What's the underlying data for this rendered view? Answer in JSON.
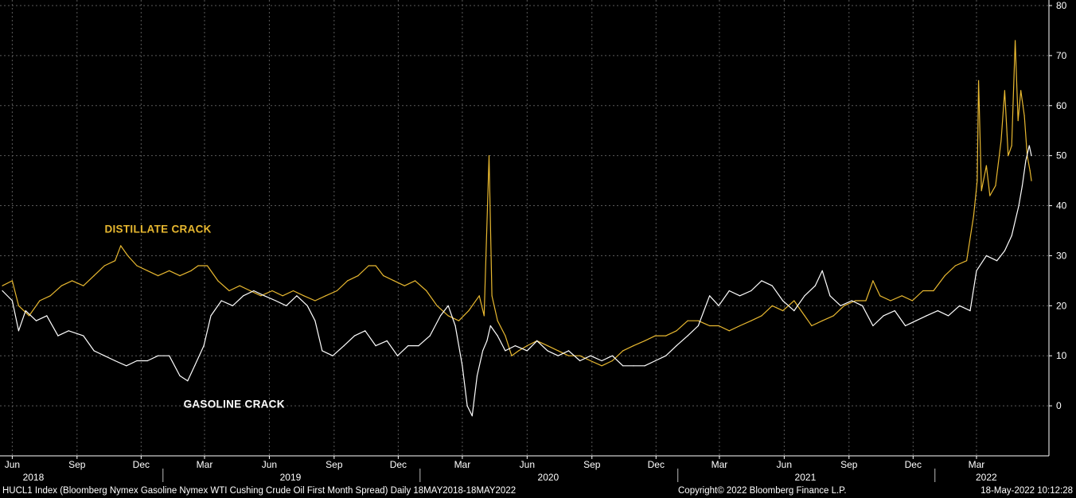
{
  "chart_data": {
    "type": "line",
    "x_range": [
      "2018-05-18",
      "2022-05-18"
    ],
    "ylim": [
      -10,
      80
    ],
    "yticks": [
      0,
      10,
      20,
      30,
      40,
      50,
      60,
      70,
      80
    ],
    "grid": true,
    "month_ticks": [
      {
        "label": "Jun",
        "date": "2018-06-01"
      },
      {
        "label": "Sep",
        "date": "2018-09-01"
      },
      {
        "label": "Dec",
        "date": "2018-12-01"
      },
      {
        "label": "Mar",
        "date": "2019-03-01"
      },
      {
        "label": "Jun",
        "date": "2019-06-01"
      },
      {
        "label": "Sep",
        "date": "2019-09-01"
      },
      {
        "label": "Dec",
        "date": "2019-12-01"
      },
      {
        "label": "Mar",
        "date": "2020-03-01"
      },
      {
        "label": "Jun",
        "date": "2020-06-01"
      },
      {
        "label": "Sep",
        "date": "2020-09-01"
      },
      {
        "label": "Dec",
        "date": "2020-12-01"
      },
      {
        "label": "Mar",
        "date": "2021-03-01"
      },
      {
        "label": "Jun",
        "date": "2021-06-01"
      },
      {
        "label": "Sep",
        "date": "2021-09-01"
      },
      {
        "label": "Dec",
        "date": "2021-12-01"
      },
      {
        "label": "Mar",
        "date": "2022-03-01"
      }
    ],
    "year_labels": [
      {
        "label": "2018",
        "date": "2018-07-01"
      },
      {
        "label": "2019",
        "date": "2019-07-01"
      },
      {
        "label": "2020",
        "date": "2020-07-01"
      },
      {
        "label": "2021",
        "date": "2021-07-01"
      },
      {
        "label": "2022",
        "date": "2022-03-15"
      }
    ],
    "series": [
      {
        "name": "DISTILLATE CRACK",
        "color": "#e8b830",
        "points": [
          [
            "2018-05-18",
            24
          ],
          [
            "2018-06-01",
            25
          ],
          [
            "2018-06-10",
            20
          ],
          [
            "2018-06-25",
            18
          ],
          [
            "2018-07-10",
            21
          ],
          [
            "2018-07-25",
            22
          ],
          [
            "2018-08-10",
            24
          ],
          [
            "2018-08-25",
            25
          ],
          [
            "2018-09-10",
            24
          ],
          [
            "2018-09-25",
            26
          ],
          [
            "2018-10-10",
            28
          ],
          [
            "2018-10-25",
            29
          ],
          [
            "2018-11-02",
            32
          ],
          [
            "2018-11-12",
            30
          ],
          [
            "2018-11-25",
            28
          ],
          [
            "2018-12-10",
            27
          ],
          [
            "2018-12-25",
            26
          ],
          [
            "2019-01-10",
            27
          ],
          [
            "2019-01-25",
            26
          ],
          [
            "2019-02-10",
            27
          ],
          [
            "2019-02-20",
            28
          ],
          [
            "2019-03-05",
            28
          ],
          [
            "2019-03-20",
            25
          ],
          [
            "2019-04-05",
            23
          ],
          [
            "2019-04-20",
            24
          ],
          [
            "2019-05-05",
            23
          ],
          [
            "2019-05-20",
            22
          ],
          [
            "2019-06-05",
            23
          ],
          [
            "2019-06-20",
            22
          ],
          [
            "2019-07-05",
            23
          ],
          [
            "2019-07-20",
            22
          ],
          [
            "2019-08-05",
            21
          ],
          [
            "2019-08-20",
            22
          ],
          [
            "2019-09-05",
            23
          ],
          [
            "2019-09-20",
            25
          ],
          [
            "2019-10-05",
            26
          ],
          [
            "2019-10-20",
            28
          ],
          [
            "2019-10-30",
            28
          ],
          [
            "2019-11-10",
            26
          ],
          [
            "2019-11-25",
            25
          ],
          [
            "2019-12-10",
            24
          ],
          [
            "2019-12-25",
            25
          ],
          [
            "2020-01-10",
            23
          ],
          [
            "2020-01-25",
            20
          ],
          [
            "2020-02-10",
            18
          ],
          [
            "2020-02-25",
            17
          ],
          [
            "2020-03-10",
            19
          ],
          [
            "2020-03-25",
            22
          ],
          [
            "2020-04-01",
            18
          ],
          [
            "2020-04-08",
            50
          ],
          [
            "2020-04-12",
            22
          ],
          [
            "2020-04-20",
            17
          ],
          [
            "2020-05-01",
            14
          ],
          [
            "2020-05-10",
            10
          ],
          [
            "2020-05-20",
            11
          ],
          [
            "2020-06-01",
            12
          ],
          [
            "2020-06-15",
            13
          ],
          [
            "2020-06-30",
            12
          ],
          [
            "2020-07-15",
            11
          ],
          [
            "2020-07-30",
            10
          ],
          [
            "2020-08-15",
            10
          ],
          [
            "2020-08-30",
            9
          ],
          [
            "2020-09-15",
            8
          ],
          [
            "2020-09-30",
            9
          ],
          [
            "2020-10-15",
            11
          ],
          [
            "2020-10-30",
            12
          ],
          [
            "2020-11-15",
            13
          ],
          [
            "2020-11-30",
            14
          ],
          [
            "2020-12-15",
            14
          ],
          [
            "2020-12-30",
            15
          ],
          [
            "2021-01-15",
            17
          ],
          [
            "2021-01-30",
            17
          ],
          [
            "2021-02-15",
            16
          ],
          [
            "2021-02-28",
            16
          ],
          [
            "2021-03-15",
            15
          ],
          [
            "2021-03-30",
            16
          ],
          [
            "2021-04-15",
            17
          ],
          [
            "2021-04-30",
            18
          ],
          [
            "2021-05-15",
            20
          ],
          [
            "2021-05-30",
            19
          ],
          [
            "2021-06-15",
            21
          ],
          [
            "2021-06-30",
            18
          ],
          [
            "2021-07-10",
            16
          ],
          [
            "2021-07-25",
            17
          ],
          [
            "2021-08-10",
            18
          ],
          [
            "2021-08-25",
            20
          ],
          [
            "2021-09-10",
            21
          ],
          [
            "2021-09-25",
            21
          ],
          [
            "2021-10-05",
            25
          ],
          [
            "2021-10-15",
            22
          ],
          [
            "2021-10-30",
            21
          ],
          [
            "2021-11-15",
            22
          ],
          [
            "2021-11-30",
            21
          ],
          [
            "2021-12-15",
            23
          ],
          [
            "2021-12-30",
            23
          ],
          [
            "2022-01-15",
            26
          ],
          [
            "2022-01-30",
            28
          ],
          [
            "2022-02-15",
            29
          ],
          [
            "2022-02-25",
            38
          ],
          [
            "2022-03-02",
            45
          ],
          [
            "2022-03-04",
            65
          ],
          [
            "2022-03-08",
            43
          ],
          [
            "2022-03-15",
            48
          ],
          [
            "2022-03-20",
            42
          ],
          [
            "2022-03-28",
            44
          ],
          [
            "2022-04-05",
            53
          ],
          [
            "2022-04-10",
            63
          ],
          [
            "2022-04-15",
            50
          ],
          [
            "2022-04-20",
            52
          ],
          [
            "2022-04-25",
            73
          ],
          [
            "2022-04-29",
            57
          ],
          [
            "2022-05-03",
            63
          ],
          [
            "2022-05-08",
            58
          ],
          [
            "2022-05-12",
            50
          ],
          [
            "2022-05-16",
            47
          ],
          [
            "2022-05-18",
            45
          ]
        ]
      },
      {
        "name": "GASOLINE CRACK",
        "color": "#ffffff",
        "points": [
          [
            "2018-05-18",
            23
          ],
          [
            "2018-06-01",
            21
          ],
          [
            "2018-06-10",
            15
          ],
          [
            "2018-06-20",
            19
          ],
          [
            "2018-07-05",
            17
          ],
          [
            "2018-07-20",
            18
          ],
          [
            "2018-08-05",
            14
          ],
          [
            "2018-08-20",
            15
          ],
          [
            "2018-09-10",
            14
          ],
          [
            "2018-09-25",
            11
          ],
          [
            "2018-10-10",
            10
          ],
          [
            "2018-10-25",
            9
          ],
          [
            "2018-11-10",
            8
          ],
          [
            "2018-11-25",
            9
          ],
          [
            "2018-12-10",
            9
          ],
          [
            "2018-12-25",
            10
          ],
          [
            "2019-01-10",
            10
          ],
          [
            "2019-01-25",
            6
          ],
          [
            "2019-02-05",
            5
          ],
          [
            "2019-02-15",
            8
          ],
          [
            "2019-02-28",
            12
          ],
          [
            "2019-03-10",
            18
          ],
          [
            "2019-03-25",
            21
          ],
          [
            "2019-04-10",
            20
          ],
          [
            "2019-04-25",
            22
          ],
          [
            "2019-05-10",
            23
          ],
          [
            "2019-05-25",
            22
          ],
          [
            "2019-06-10",
            21
          ],
          [
            "2019-06-25",
            20
          ],
          [
            "2019-07-10",
            22
          ],
          [
            "2019-07-25",
            20
          ],
          [
            "2019-08-05",
            17
          ],
          [
            "2019-08-15",
            11
          ],
          [
            "2019-08-30",
            10
          ],
          [
            "2019-09-15",
            12
          ],
          [
            "2019-09-30",
            14
          ],
          [
            "2019-10-15",
            15
          ],
          [
            "2019-10-30",
            12
          ],
          [
            "2019-11-15",
            13
          ],
          [
            "2019-11-30",
            10
          ],
          [
            "2019-12-15",
            12
          ],
          [
            "2019-12-30",
            12
          ],
          [
            "2020-01-15",
            14
          ],
          [
            "2020-01-30",
            18
          ],
          [
            "2020-02-10",
            20
          ],
          [
            "2020-02-20",
            16
          ],
          [
            "2020-03-01",
            8
          ],
          [
            "2020-03-08",
            0
          ],
          [
            "2020-03-15",
            -2
          ],
          [
            "2020-03-22",
            6
          ],
          [
            "2020-03-30",
            11
          ],
          [
            "2020-04-05",
            13
          ],
          [
            "2020-04-10",
            16
          ],
          [
            "2020-04-20",
            14
          ],
          [
            "2020-05-01",
            11
          ],
          [
            "2020-05-15",
            12
          ],
          [
            "2020-06-01",
            11
          ],
          [
            "2020-06-15",
            13
          ],
          [
            "2020-06-30",
            11
          ],
          [
            "2020-07-15",
            10
          ],
          [
            "2020-07-30",
            11
          ],
          [
            "2020-08-15",
            9
          ],
          [
            "2020-08-30",
            10
          ],
          [
            "2020-09-15",
            9
          ],
          [
            "2020-09-30",
            10
          ],
          [
            "2020-10-15",
            8
          ],
          [
            "2020-10-30",
            8
          ],
          [
            "2020-11-15",
            8
          ],
          [
            "2020-11-30",
            9
          ],
          [
            "2020-12-15",
            10
          ],
          [
            "2020-12-30",
            12
          ],
          [
            "2021-01-15",
            14
          ],
          [
            "2021-01-30",
            16
          ],
          [
            "2021-02-15",
            22
          ],
          [
            "2021-02-28",
            20
          ],
          [
            "2021-03-15",
            23
          ],
          [
            "2021-03-30",
            22
          ],
          [
            "2021-04-15",
            23
          ],
          [
            "2021-04-30",
            25
          ],
          [
            "2021-05-15",
            24
          ],
          [
            "2021-05-30",
            21
          ],
          [
            "2021-06-15",
            19
          ],
          [
            "2021-06-30",
            22
          ],
          [
            "2021-07-15",
            24
          ],
          [
            "2021-07-25",
            27
          ],
          [
            "2021-08-05",
            22
          ],
          [
            "2021-08-20",
            20
          ],
          [
            "2021-09-05",
            21
          ],
          [
            "2021-09-20",
            20
          ],
          [
            "2021-10-05",
            16
          ],
          [
            "2021-10-20",
            18
          ],
          [
            "2021-11-05",
            19
          ],
          [
            "2021-11-20",
            16
          ],
          [
            "2021-12-05",
            17
          ],
          [
            "2021-12-20",
            18
          ],
          [
            "2022-01-05",
            19
          ],
          [
            "2022-01-20",
            18
          ],
          [
            "2022-02-05",
            20
          ],
          [
            "2022-02-20",
            19
          ],
          [
            "2022-03-01",
            27
          ],
          [
            "2022-03-15",
            30
          ],
          [
            "2022-03-30",
            29
          ],
          [
            "2022-04-10",
            31
          ],
          [
            "2022-04-20",
            34
          ],
          [
            "2022-04-30",
            40
          ],
          [
            "2022-05-05",
            44
          ],
          [
            "2022-05-10",
            49
          ],
          [
            "2022-05-15",
            52
          ],
          [
            "2022-05-18",
            50
          ]
        ]
      }
    ],
    "annotations": [
      {
        "text": "DISTILLATE CRACK",
        "date": "2018-12-25",
        "value": 34.6,
        "color": "#e8b830"
      },
      {
        "text": "GASOLINE CRACK",
        "date": "2019-04-12",
        "value": -0.4,
        "color": "#ffffff"
      }
    ]
  },
  "footer": {
    "left": "HUCL1 Index (Bloomberg Nymex Gasoline Nymex WTI Cushing Crude Oil First Month Spread)  Daily 18MAY2018-18MAY2022",
    "center": "Copyright© 2022 Bloomberg Finance L.P.",
    "right": "18-May-2022 10:12:28"
  }
}
